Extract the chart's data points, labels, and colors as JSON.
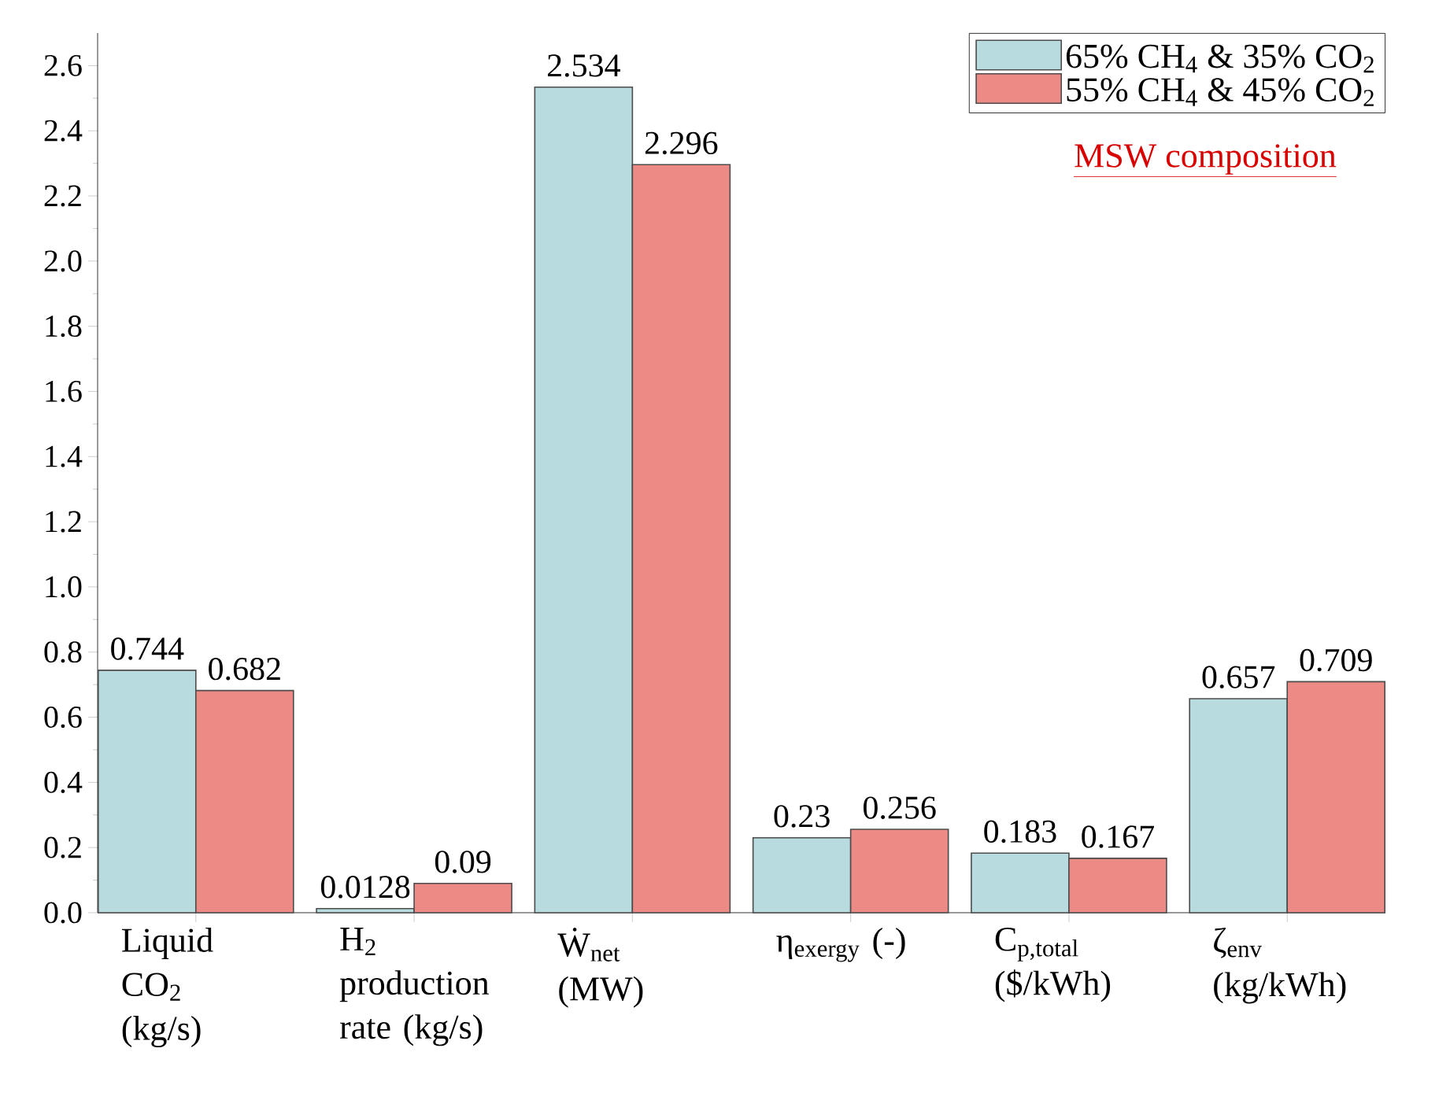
{
  "chart_data": {
    "type": "bar",
    "categories": [
      "Liquid CO$_{2}$ (kg/s)",
      "H$_{2}$ production rate (kg/s)",
      "Ẇ$_{net}$ (MW)",
      "η$_{exergy}$ (-)",
      "C$_{p,total}$ ($/kWh)",
      "ζ$_{env}$ (kg/kWh)"
    ],
    "series": [
      {
        "name": "65% CH$_{4}$ & 35% CO$_{2}$",
        "color": "#b8dbe0",
        "values": [
          0.744,
          0.0128,
          2.534,
          0.23,
          0.183,
          0.657
        ],
        "value_labels": [
          "0.744",
          "0.0128",
          "2.534",
          "0.23",
          "0.183",
          "0.657"
        ]
      },
      {
        "name": "55% CH$_{4}$ & 45% CO$_{2}$",
        "color": "#ec8a86",
        "values": [
          0.682,
          0.09,
          2.296,
          0.256,
          0.167,
          0.709
        ],
        "value_labels": [
          "0.682",
          "0.09",
          "2.296",
          "0.256",
          "0.167",
          "0.709"
        ]
      }
    ],
    "ylim": [
      0,
      2.7
    ],
    "yticks": [
      {
        "value": 0,
        "label": "0.0"
      },
      {
        "value": 0.2,
        "label": "0.2"
      },
      {
        "value": 0.4,
        "label": "0.4"
      },
      {
        "value": 0.6,
        "label": "0.6"
      },
      {
        "value": 0.8,
        "label": "0.8"
      },
      {
        "value": 1.0,
        "label": "1.0"
      },
      {
        "value": 1.2,
        "label": "1.2"
      },
      {
        "value": 1.4,
        "label": "1.4"
      },
      {
        "value": 1.6,
        "label": "1.6"
      },
      {
        "value": 1.8,
        "label": "1.8"
      },
      {
        "value": 2.0,
        "label": "2.0"
      },
      {
        "value": 2.2,
        "label": "2.2"
      },
      {
        "value": 2.4,
        "label": "2.4"
      },
      {
        "value": 2.6,
        "label": "2.6"
      }
    ],
    "annotations": [
      "MSW composition"
    ],
    "legend": "top right",
    "grid": false
  }
}
